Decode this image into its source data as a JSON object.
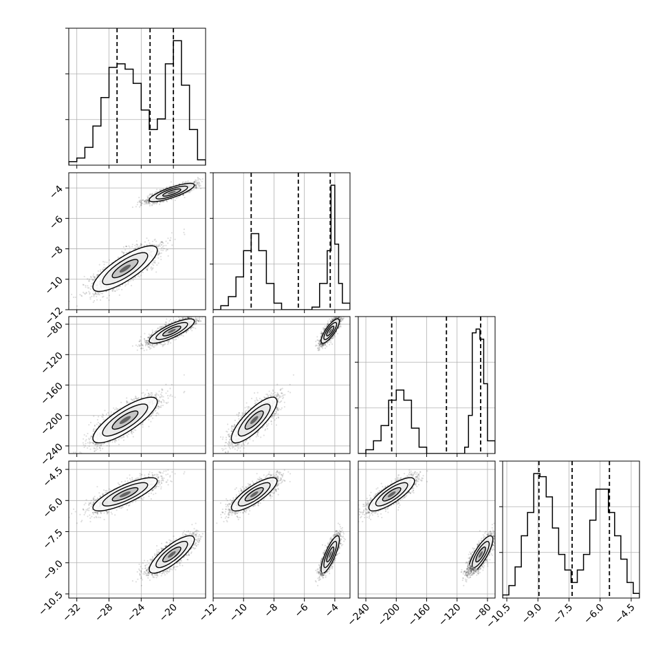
{
  "chart_data": {
    "type": "corner",
    "grid": true,
    "histogram_quantile_lines": "dashed",
    "params": [
      {
        "range": [
          -33,
          -16
        ],
        "ticks": [
          -32,
          -28,
          -24,
          -20
        ],
        "tick_labels": [
          "−32",
          "−28",
          "−24",
          "−20"
        ],
        "quantiles": [
          -27.0,
          -22.9,
          -20.0
        ],
        "hist": {
          "bins": [
            -33,
            -32,
            -31,
            -30,
            -29,
            -28,
            -27,
            -26,
            -25,
            -24,
            -23,
            -22,
            -21,
            -20,
            -19,
            -18,
            -17,
            -16
          ],
          "counts": [
            2,
            4,
            10,
            22,
            38,
            55,
            57,
            54,
            46,
            31,
            20,
            26,
            57,
            70,
            45,
            20,
            3
          ]
        }
      },
      {
        "range": [
          -12,
          -3
        ],
        "ticks": [
          -12,
          -10,
          -8,
          -6,
          -4
        ],
        "tick_labels": [
          "−12",
          "−10",
          "−8",
          "−6",
          "−4"
        ],
        "quantiles": [
          -9.5,
          -6.4,
          -4.3
        ],
        "hist": {
          "bins": [
            -12,
            -11.5,
            -11,
            -10.5,
            -10,
            -9.5,
            -9,
            -8.5,
            -8,
            -7.5,
            -7,
            -6.5,
            -6,
            -5.5,
            -5,
            -4.5,
            -4.25,
            -4,
            -3.75,
            -3.5,
            -3
          ],
          "counts": [
            0,
            3,
            10,
            25,
            45,
            58,
            45,
            20,
            5,
            0,
            0,
            0,
            0,
            2,
            20,
            45,
            95,
            50,
            20,
            5
          ]
        }
      },
      {
        "range": [
          -250,
          -70
        ],
        "ticks": [
          -240,
          -200,
          -160,
          -120,
          -80
        ],
        "tick_labels": [
          "−240",
          "−200",
          "−160",
          "−120",
          "−80"
        ],
        "quantiles": [
          -206,
          -134,
          -89
        ],
        "hist": {
          "bins": [
            -250,
            -240,
            -230,
            -220,
            -210,
            -200,
            -190,
            -180,
            -170,
            -160,
            -150,
            -140,
            -130,
            -120,
            -110,
            -105,
            -100,
            -95,
            -90,
            -85,
            -80,
            -70
          ],
          "counts": [
            0,
            3,
            10,
            22,
            42,
            50,
            42,
            20,
            5,
            0,
            0,
            0,
            0,
            0,
            5,
            30,
            95,
            98,
            90,
            55,
            10
          ]
        }
      },
      {
        "range": [
          -10.7,
          -4.1
        ],
        "ticks": [
          -10.5,
          -9.0,
          -7.5,
          -6.0,
          -4.5
        ],
        "tick_labels": [
          "−10.5",
          "−9.0",
          "−7.5",
          "−6.0",
          "−4.5"
        ],
        "quantiles": [
          -8.95,
          -7.35,
          -5.55
        ],
        "hist": {
          "bins": [
            -10.7,
            -10.4,
            -10.1,
            -9.8,
            -9.5,
            -9.2,
            -8.9,
            -8.6,
            -8.3,
            -8.0,
            -7.7,
            -7.4,
            -7.1,
            -6.8,
            -6.5,
            -6.2,
            -5.9,
            -5.6,
            -5.3,
            -5.0,
            -4.7,
            -4.4,
            -4.1
          ],
          "counts": [
            2,
            8,
            20,
            40,
            55,
            80,
            78,
            65,
            45,
            28,
            18,
            10,
            18,
            28,
            50,
            70,
            70,
            55,
            40,
            25,
            10,
            3
          ]
        }
      }
    ],
    "clusters": [
      {
        "mean": [
          -20.2,
          -4.3,
          -89,
          -8.6
        ],
        "sd": [
          1.4,
          0.3,
          8,
          0.45
        ]
      },
      {
        "mean": [
          -26.0,
          -9.3,
          -206,
          -5.7
        ],
        "sd": [
          2.0,
          0.75,
          15,
          0.4
        ]
      }
    ]
  }
}
